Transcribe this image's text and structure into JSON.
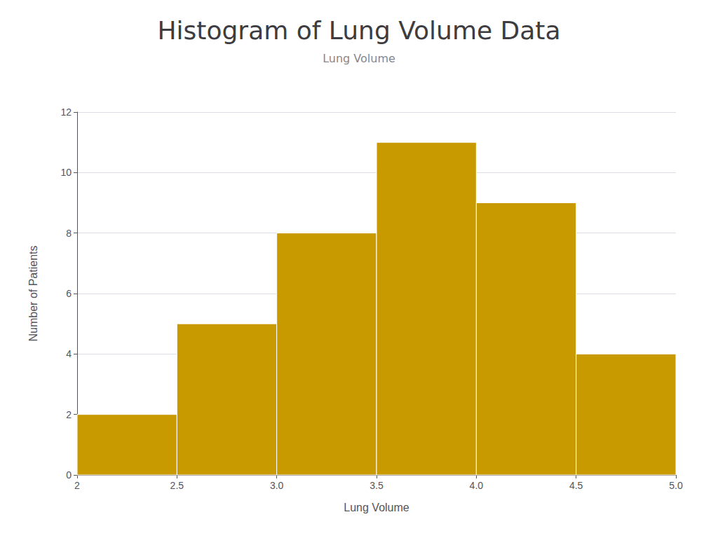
{
  "chart_data": {
    "type": "histogram",
    "title": "Histogram of Lung Volume Data",
    "subtitle": "Lung Volume",
    "xlabel": "Lung Volume",
    "ylabel": "Number of Patients",
    "bins": [
      2.0,
      2.5,
      3.0,
      3.5,
      4.0,
      4.5,
      5.0
    ],
    "values": [
      2,
      5,
      8,
      11,
      9,
      4
    ],
    "color": "#C99A00",
    "xlim": [
      2.0,
      5.0
    ],
    "ylim": [
      0,
      12
    ],
    "yticks": [
      0,
      2,
      4,
      6,
      8,
      10,
      12
    ],
    "xticks": [
      2,
      2.5,
      {
        "value": 3.0,
        "label": "3.0"
      },
      {
        "value": 3.5,
        "label": "3.5"
      },
      {
        "value": 4.0,
        "label": "4.0"
      },
      {
        "value": 4.5,
        "label": "4.5"
      },
      {
        "value": 5.0,
        "label": "5.0"
      }
    ],
    "grid": true
  }
}
